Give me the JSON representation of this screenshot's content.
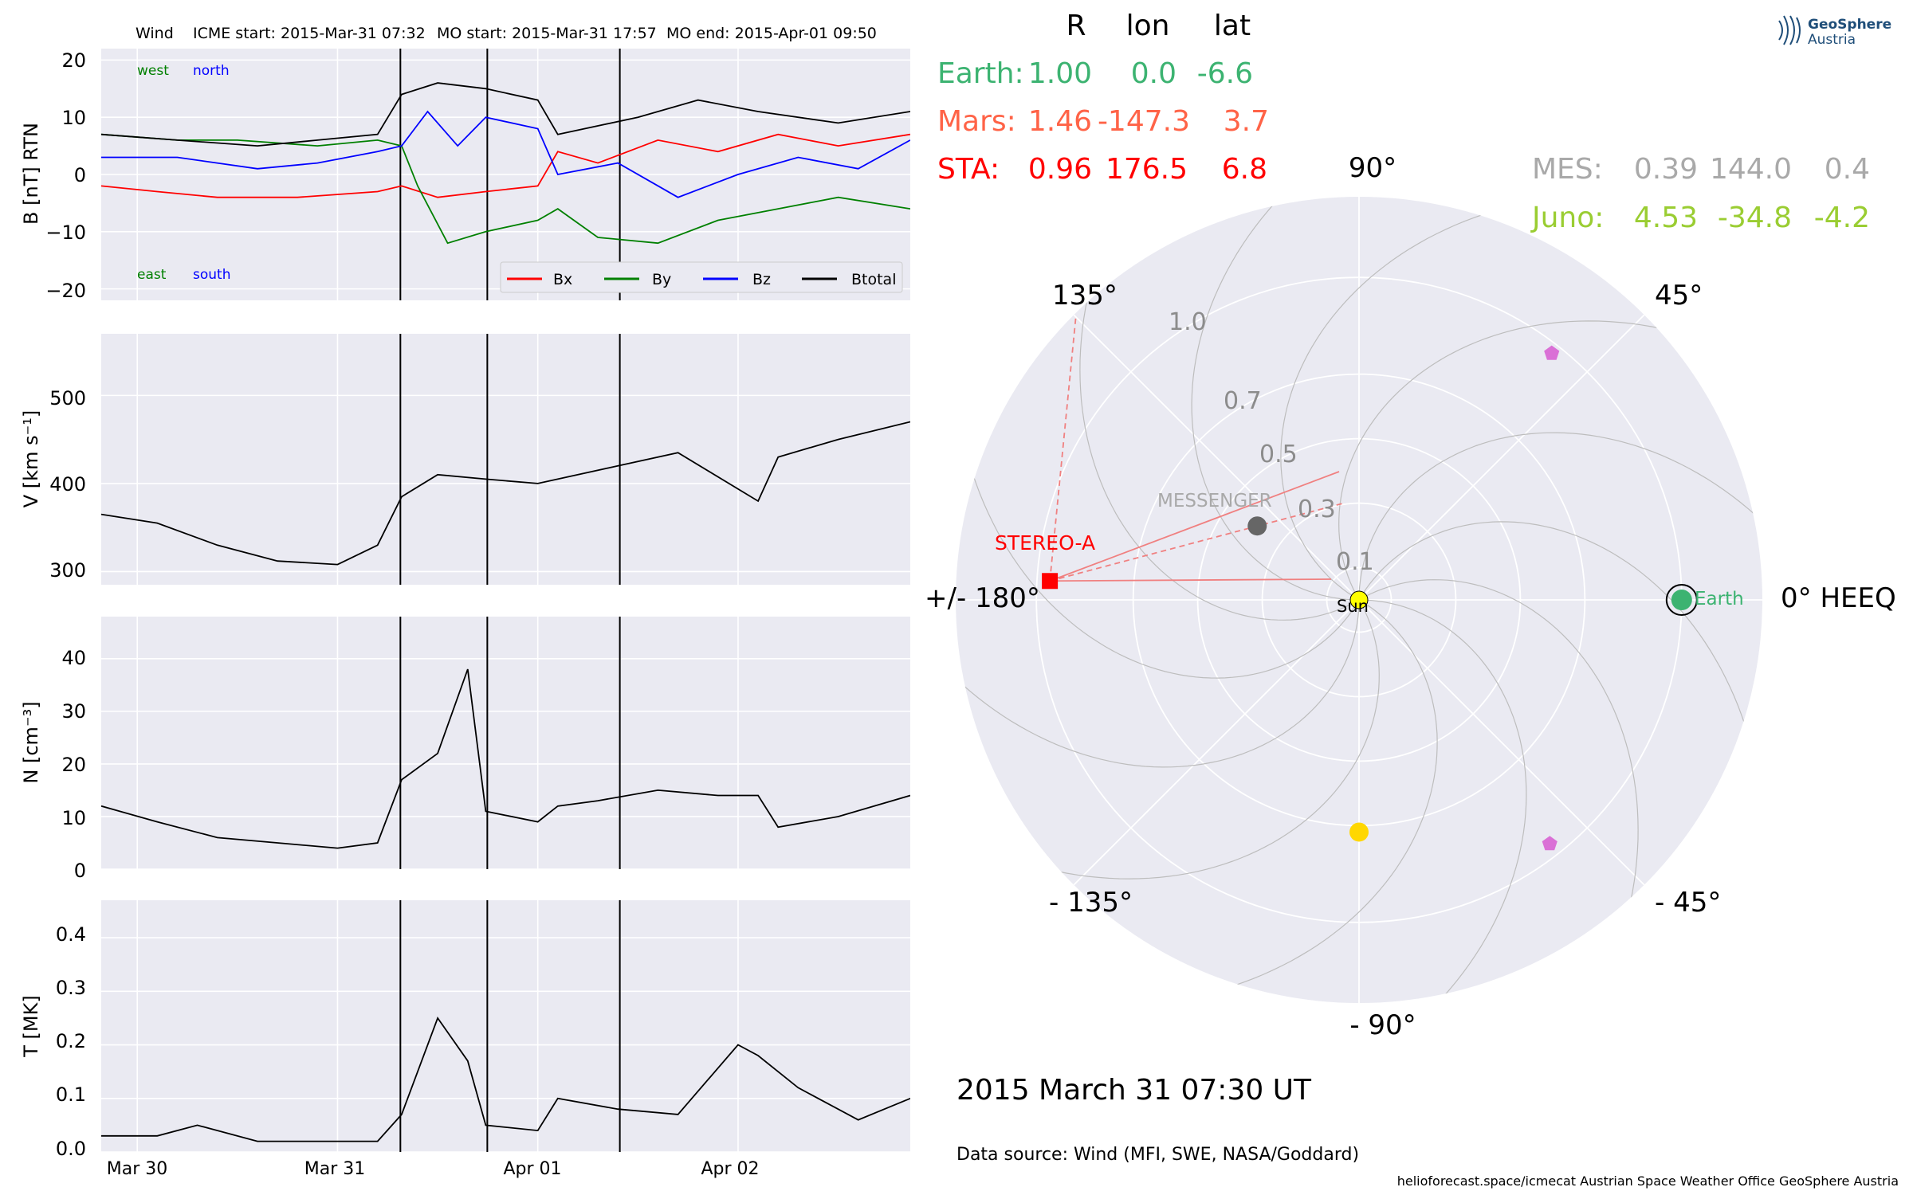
{
  "header": {
    "spacecraft": "Wind",
    "icme_start": "ICME start: 2015-Mar-31 07:32",
    "mo_start": "MO start: 2015-Mar-31 17:57",
    "mo_end": "MO end: 2015-Apr-01 09:50"
  },
  "logo": {
    "line1": "GeoSphere",
    "line2": "Austria",
    "color": "#1f4e79"
  },
  "colors": {
    "bx": "#ff0000",
    "by": "#008000",
    "bz": "#0000ff",
    "btotal": "#000000",
    "earth": "#3cb371",
    "mars": "#ff6347",
    "sta": "#ff0000",
    "mes": "#a9a9a9",
    "juno": "#9acd32",
    "panel_bg": "#eaeaf2"
  },
  "position_table": {
    "headers": [
      "R",
      "lon",
      "lat"
    ],
    "rows": [
      {
        "name": "Earth:",
        "R": "1.00",
        "lon": "0.0",
        "lat": "-6.6",
        "color": "#3cb371"
      },
      {
        "name": "Mars:",
        "R": "1.46",
        "lon": "-147.3",
        "lat": "3.7",
        "color": "#ff6347"
      },
      {
        "name": "STA:",
        "R": "0.96",
        "lon": "176.5",
        "lat": "6.8",
        "color": "#ff0000"
      },
      {
        "name": "MES:",
        "R": "0.39",
        "lon": "144.0",
        "lat": "0.4",
        "color": "#a9a9a9"
      },
      {
        "name": "Juno:",
        "R": "4.53",
        "lon": "-34.8",
        "lat": "-4.2",
        "color": "#9acd32"
      }
    ]
  },
  "timestamp": "2015 March 31  07:30 UT",
  "data_source": "Data source: Wind (MFI, SWE, NASA/Goddard)",
  "footer": "helioforecast.space/icmecat   Austrian Space Weather Office   GeoSphere Austria",
  "chart_data": [
    {
      "type": "line",
      "panel": "magnetic field",
      "ylabel": "B [nT] RTN",
      "ylim": [
        -22,
        22
      ],
      "yticks": [
        "20",
        "10",
        "0",
        "−10",
        "−20"
      ],
      "x_unit": "days since 2015-Mar-30 00:00",
      "x_range": [
        -0.18,
        3.86
      ],
      "xticks": [
        "Mar 30",
        "Mar 31",
        "Apr 01",
        "Apr 02"
      ],
      "event_lines": [
        "2015-Mar-31 07:32",
        "2015-Mar-31 17:57",
        "2015-Apr-01 09:50"
      ],
      "corner_labels": {
        "west": "west",
        "north": "north",
        "east": "east",
        "south": "south"
      },
      "legend": {
        "placement": "bottom-right",
        "entries": [
          "Bx",
          "By",
          "Bz",
          "Btotal"
        ]
      },
      "series": [
        {
          "name": "Bx",
          "x": [
            -0.18,
            0.1,
            0.4,
            0.8,
            1.2,
            1.32,
            1.5,
            1.74,
            2.0,
            2.1,
            2.3,
            2.6,
            2.9,
            3.2,
            3.5,
            3.86
          ],
          "y": [
            -2,
            -3,
            -4,
            -4,
            -3,
            -2,
            -4,
            -3,
            -2,
            4,
            2,
            6,
            4,
            7,
            5,
            7
          ]
        },
        {
          "name": "By",
          "x": [
            -0.18,
            0.2,
            0.5,
            0.9,
            1.2,
            1.32,
            1.4,
            1.55,
            1.74,
            2.0,
            2.1,
            2.3,
            2.6,
            2.9,
            3.2,
            3.5,
            3.86
          ],
          "y": [
            7,
            6,
            6,
            5,
            6,
            5,
            -2,
            -12,
            -10,
            -8,
            -6,
            -11,
            -12,
            -8,
            -6,
            -4,
            -6
          ]
        },
        {
          "name": "Bz",
          "x": [
            -0.18,
            0.2,
            0.6,
            0.9,
            1.2,
            1.32,
            1.45,
            1.6,
            1.74,
            2.0,
            2.1,
            2.4,
            2.7,
            3.0,
            3.3,
            3.6,
            3.86
          ],
          "y": [
            3,
            3,
            1,
            2,
            4,
            5,
            11,
            5,
            10,
            8,
            0,
            2,
            -4,
            0,
            3,
            1,
            6
          ]
        },
        {
          "name": "Btotal",
          "x": [
            -0.18,
            0.2,
            0.6,
            0.9,
            1.2,
            1.32,
            1.5,
            1.74,
            2.0,
            2.1,
            2.5,
            2.8,
            3.1,
            3.5,
            3.86
          ],
          "y": [
            7,
            6,
            5,
            6,
            7,
            14,
            16,
            15,
            13,
            7,
            10,
            13,
            11,
            9,
            11
          ]
        }
      ]
    },
    {
      "type": "line",
      "panel": "speed",
      "ylabel": "V [km s⁻¹]",
      "ylim": [
        285,
        570
      ],
      "yticks": [
        "500",
        "400",
        "300"
      ],
      "series": [
        {
          "name": "V",
          "x": [
            -0.18,
            0.1,
            0.4,
            0.7,
            1.0,
            1.2,
            1.32,
            1.5,
            1.74,
            2.0,
            2.4,
            2.7,
            3.1,
            3.2,
            3.5,
            3.86
          ],
          "y": [
            365,
            355,
            330,
            312,
            308,
            330,
            385,
            410,
            405,
            400,
            420,
            435,
            380,
            430,
            450,
            470
          ]
        }
      ]
    },
    {
      "type": "line",
      "panel": "density",
      "ylabel": "N [cm⁻³]",
      "ylim": [
        0,
        48
      ],
      "yticks": [
        "40",
        "30",
        "20",
        "10",
        "0"
      ],
      "series": [
        {
          "name": "N",
          "x": [
            -0.18,
            0.1,
            0.4,
            0.7,
            1.0,
            1.2,
            1.32,
            1.5,
            1.65,
            1.74,
            2.0,
            2.1,
            2.3,
            2.6,
            2.9,
            3.1,
            3.2,
            3.5,
            3.86
          ],
          "y": [
            12,
            9,
            6,
            5,
            4,
            5,
            17,
            22,
            38,
            11,
            9,
            12,
            13,
            15,
            14,
            14,
            8,
            10,
            14
          ]
        }
      ]
    },
    {
      "type": "line",
      "panel": "temperature",
      "ylabel": "T [MK]",
      "ylim": [
        0,
        0.47
      ],
      "yticks": [
        "0.4",
        "0.3",
        "0.2",
        "0.1",
        "0.0"
      ],
      "series": [
        {
          "name": "T",
          "x": [
            -0.18,
            0.1,
            0.3,
            0.6,
            0.9,
            1.2,
            1.32,
            1.5,
            1.65,
            1.74,
            2.0,
            2.1,
            2.4,
            2.7,
            3.0,
            3.1,
            3.3,
            3.6,
            3.86
          ],
          "y": [
            0.03,
            0.03,
            0.05,
            0.02,
            0.02,
            0.02,
            0.07,
            0.25,
            0.17,
            0.05,
            0.04,
            0.1,
            0.08,
            0.07,
            0.2,
            0.18,
            0.12,
            0.06,
            0.1
          ]
        }
      ]
    },
    {
      "type": "scatter",
      "panel": "polar orbit plot",
      "angle_labels": {
        "a0": "0° HEEQ",
        "a45": "45°",
        "a90": "90°",
        "a135": "135°",
        "a180": "+/- 180°",
        "am135": "- 135°",
        "am90": "- 90°",
        "am45": "- 45°"
      },
      "radial_ticks": [
        "0.1",
        "0.3",
        "0.5",
        "0.7",
        "1.0"
      ],
      "radial_tick_values": [
        0.1,
        0.3,
        0.5,
        0.7,
        1.0
      ],
      "rmax": 1.25,
      "bodies": [
        {
          "name": "Sun",
          "r": 0.0,
          "lon": 0,
          "color": "#ffff00",
          "label": "Sun"
        },
        {
          "name": "Earth",
          "r": 1.0,
          "lon": 0,
          "color": "#3cb371",
          "label": "Earth"
        },
        {
          "name": "STEREO-A",
          "r": 0.96,
          "lon": 176.5,
          "color": "#ff0000",
          "label": "STEREO-A"
        },
        {
          "name": "MESSENGER",
          "r": 0.39,
          "lon": 144.0,
          "color": "#666666",
          "label": "MESSENGER"
        },
        {
          "name": "Venus",
          "r": 0.72,
          "lon": -90,
          "color": "#ffd700",
          "label": ""
        },
        {
          "name": "Probe-1",
          "r": 0.97,
          "lon": 52,
          "color": "#da70d6",
          "label": ""
        },
        {
          "name": "Probe-2",
          "r": 0.96,
          "lon": -52,
          "color": "#da70d6",
          "label": ""
        }
      ]
    }
  ]
}
